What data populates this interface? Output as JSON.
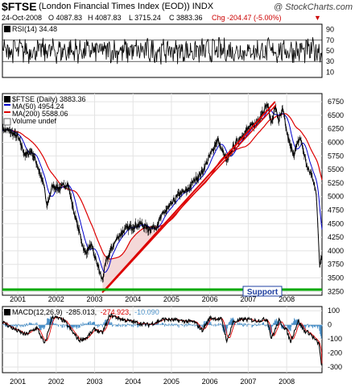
{
  "header": {
    "symbol": "$FTSE",
    "name": "(London Financial Times Index (EOD))",
    "exchange": "INDX",
    "date": "24-Oct-2008",
    "open": "O 4087.83",
    "high": "H 4087.83",
    "low": "L 3715.24",
    "close": "C 3883.36",
    "change": "Chg -204.47 (-5.00%)",
    "brand": "@ StockCharts.com"
  },
  "rsi": {
    "label": "RSI(14) 34.48",
    "ticks": [
      90,
      70,
      50,
      30,
      10
    ],
    "levels": [
      70,
      30
    ],
    "color": "#000000"
  },
  "price": {
    "legend": {
      "title": "$FTSE (Daily) 3883.36",
      "ma50": "MA(50) 4954.24",
      "ma200": "MA(200) 5588.06",
      "volume": "Volume undef"
    },
    "ticks": [
      6750,
      6500,
      6250,
      6000,
      5750,
      5500,
      5250,
      5000,
      4750,
      4500,
      4250,
      4000,
      3750,
      3500,
      3250
    ],
    "ylim": [
      3180,
      6900
    ],
    "support_label": "Support",
    "support_level": 3285,
    "trendline": {
      "x": [
        2003.2,
        2007.7
      ],
      "y": [
        3230,
        6750
      ]
    },
    "colors": {
      "price": "#000000",
      "ma50": "#0000cc",
      "ma200": "#dd0000",
      "trend": "#dd0000",
      "support": "#00aa00",
      "fill": "#f4d8d8"
    }
  },
  "macd": {
    "label": "MACD(12,26,9)",
    "macd_value": "-285.013",
    "signal_value": "-274.923",
    "hist_value": "-10.090",
    "ticks": [
      100,
      0,
      -100,
      -200,
      -300
    ],
    "colors": {
      "macd": "#000000",
      "signal": "#dd0000",
      "hist": "#4a90c8"
    }
  },
  "x_axis": {
    "years": [
      "2001",
      "2002",
      "2003",
      "2004",
      "2005",
      "2006",
      "2007",
      "2008"
    ],
    "xlim": [
      2000.6,
      2008.92
    ]
  },
  "chart_data": [
    {
      "type": "line",
      "title": "$FTSE (Daily)",
      "x": [
        2000.6,
        2000.8,
        2001.0,
        2001.2,
        2001.35,
        2001.5,
        2001.7,
        2001.75,
        2001.9,
        2002.1,
        2002.3,
        2002.45,
        2002.6,
        2002.75,
        2002.9,
        2003.05,
        2003.2,
        2003.3,
        2003.45,
        2003.6,
        2003.8,
        2004.0,
        2004.2,
        2004.4,
        2004.6,
        2004.8,
        2005.0,
        2005.2,
        2005.4,
        2005.6,
        2005.8,
        2006.0,
        2006.2,
        2006.35,
        2006.45,
        2006.6,
        2006.8,
        2007.0,
        2007.2,
        2007.4,
        2007.5,
        2007.6,
        2007.7,
        2007.8,
        2007.9,
        2008.0,
        2008.1,
        2008.2,
        2008.35,
        2008.45,
        2008.55,
        2008.65,
        2008.72,
        2008.78,
        2008.82,
        2008.86,
        2008.9
      ],
      "y": [
        6250,
        6200,
        6100,
        5750,
        5850,
        5600,
        5150,
        4800,
        5200,
        5150,
        5250,
        4750,
        4350,
        3950,
        4100,
        3800,
        3450,
        3800,
        4050,
        4250,
        4400,
        4450,
        4500,
        4400,
        4450,
        4700,
        4850,
        5050,
        5100,
        5300,
        5450,
        5750,
        6050,
        5800,
        5650,
        5900,
        6100,
        6250,
        6350,
        6600,
        6700,
        6350,
        6650,
        6400,
        6600,
        6200,
        5900,
        5800,
        6100,
        5800,
        5500,
        5400,
        5250,
        4950,
        4350,
        3750,
        3883
      ]
    },
    {
      "type": "line",
      "title": "RSI(14)",
      "ylim": [
        0,
        100
      ],
      "last": 34.48
    },
    {
      "type": "line",
      "title": "MACD(12,26,9)",
      "x": [
        2000.6,
        2000.9,
        2001.2,
        2001.5,
        2001.7,
        2001.9,
        2002.2,
        2002.45,
        2002.6,
        2002.8,
        2003.0,
        2003.2,
        2003.4,
        2003.7,
        2004.0,
        2004.4,
        2004.8,
        2005.2,
        2005.6,
        2005.8,
        2006.0,
        2006.3,
        2006.45,
        2006.6,
        2006.9,
        2007.2,
        2007.5,
        2007.6,
        2007.8,
        2008.0,
        2008.1,
        2008.3,
        2008.45,
        2008.6,
        2008.75,
        2008.85,
        2008.9
      ],
      "y": [
        20,
        -30,
        -70,
        -20,
        -140,
        60,
        30,
        -60,
        -110,
        -90,
        -30,
        -60,
        70,
        40,
        20,
        0,
        40,
        30,
        20,
        -40,
        50,
        40,
        -120,
        20,
        40,
        30,
        40,
        -100,
        30,
        -40,
        -120,
        30,
        -40,
        -60,
        -110,
        -140,
        -285
      ]
    }
  ]
}
